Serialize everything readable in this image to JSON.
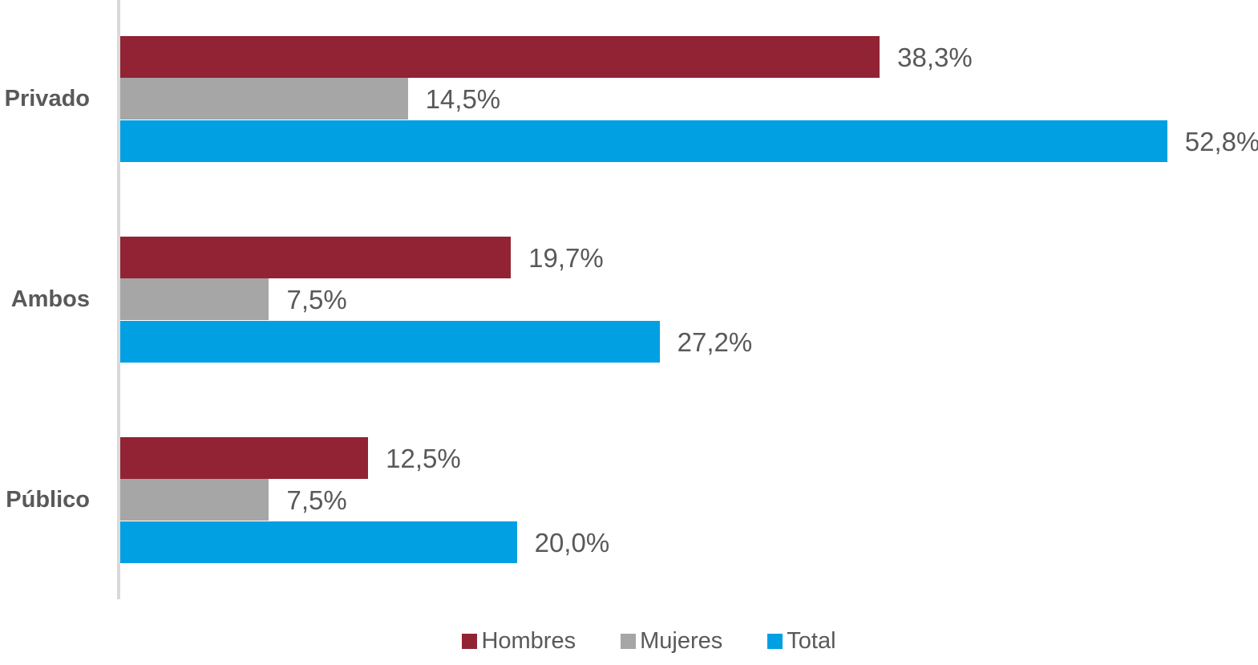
{
  "chart_data": {
    "type": "bar",
    "orientation": "horizontal",
    "title": "",
    "xlabel": "",
    "ylabel": "",
    "categories": [
      "Privado",
      "Ambos",
      "Público"
    ],
    "series": [
      {
        "name": "Hombres",
        "color": "#912334",
        "values": [
          38.3,
          19.7,
          12.5
        ],
        "value_labels": [
          "38,3%",
          "19,7%",
          "12,5%"
        ]
      },
      {
        "name": "Mujeres",
        "color": "#A6A6A6",
        "values": [
          14.5,
          7.5,
          7.5
        ],
        "value_labels": [
          "14,5%",
          "7,5%",
          "7,5%"
        ]
      },
      {
        "name": "Total",
        "color": "#00A0E3",
        "values": [
          52.8,
          27.2,
          20.0
        ],
        "value_labels": [
          "52,8%",
          "27,2%",
          "20,0%"
        ]
      }
    ],
    "xlim": [
      0,
      57.4
    ],
    "grid": false,
    "legend_position": "bottom",
    "value_label_position": "outside-end"
  },
  "colors": {
    "axis_line": "#D9D9D9",
    "text": "#595959",
    "background": "#FFFFFF"
  },
  "legend": {
    "items": [
      {
        "label": "Hombres",
        "color": "#912334"
      },
      {
        "label": "Mujeres",
        "color": "#A6A6A6"
      },
      {
        "label": "Total",
        "color": "#00A0E3"
      }
    ]
  }
}
